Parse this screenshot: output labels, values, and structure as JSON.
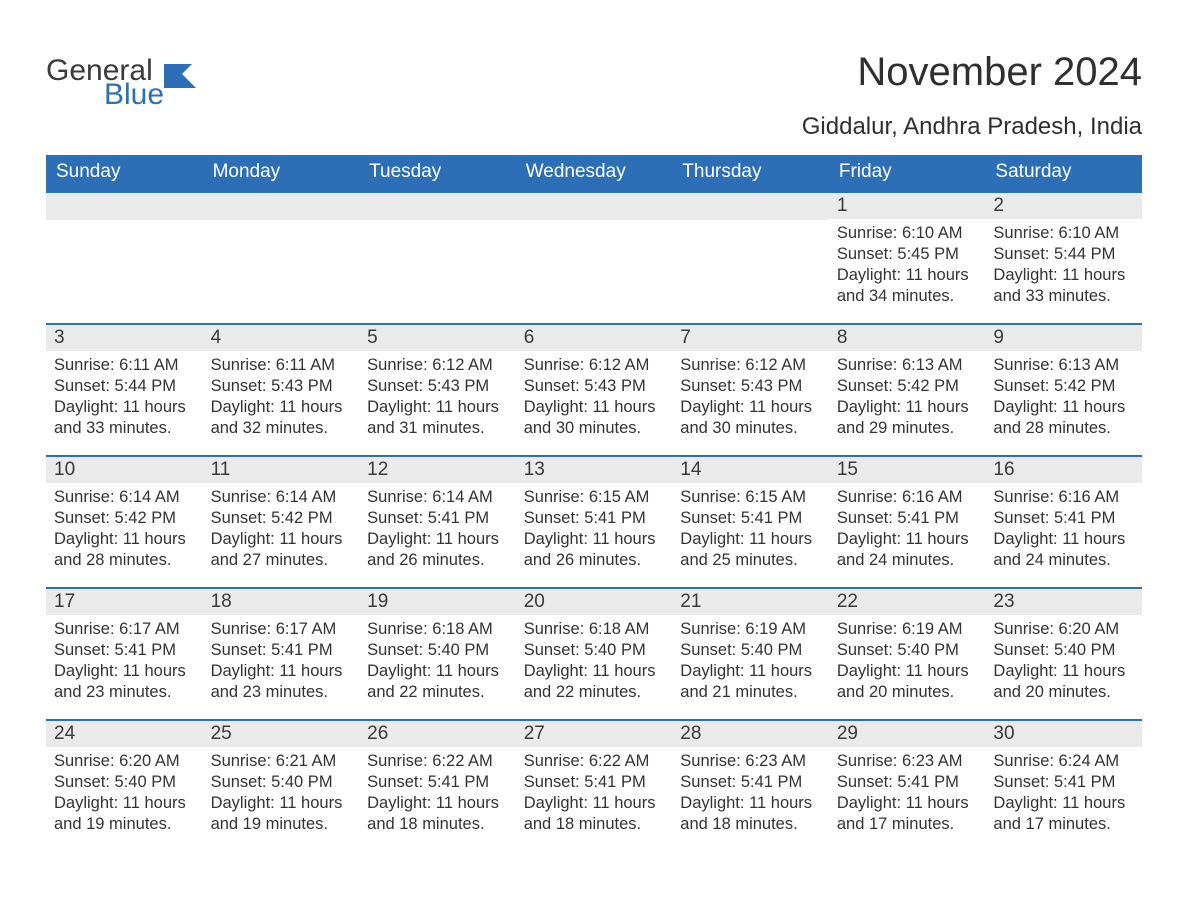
{
  "logo": {
    "text_general": "General",
    "text_blue": "Blue",
    "icon_color": "#2d6fb7"
  },
  "title": "November 2024",
  "location": "Giddalur, Andhra Pradesh, India",
  "colors": {
    "header_bg": "#2d6fb7",
    "header_text": "#ffffff",
    "daybar_bg": "#eaeaea",
    "rule": "#2d6fb7",
    "text": "#333333",
    "page_bg": "#ffffff"
  },
  "weekdays": [
    "Sunday",
    "Monday",
    "Tuesday",
    "Wednesday",
    "Thursday",
    "Friday",
    "Saturday"
  ],
  "startOffset": 5,
  "days": [
    {
      "n": 1,
      "sunrise": "6:10 AM",
      "sunset": "5:45 PM",
      "daylight": "11 hours and 34 minutes."
    },
    {
      "n": 2,
      "sunrise": "6:10 AM",
      "sunset": "5:44 PM",
      "daylight": "11 hours and 33 minutes."
    },
    {
      "n": 3,
      "sunrise": "6:11 AM",
      "sunset": "5:44 PM",
      "daylight": "11 hours and 33 minutes."
    },
    {
      "n": 4,
      "sunrise": "6:11 AM",
      "sunset": "5:43 PM",
      "daylight": "11 hours and 32 minutes."
    },
    {
      "n": 5,
      "sunrise": "6:12 AM",
      "sunset": "5:43 PM",
      "daylight": "11 hours and 31 minutes."
    },
    {
      "n": 6,
      "sunrise": "6:12 AM",
      "sunset": "5:43 PM",
      "daylight": "11 hours and 30 minutes."
    },
    {
      "n": 7,
      "sunrise": "6:12 AM",
      "sunset": "5:43 PM",
      "daylight": "11 hours and 30 minutes."
    },
    {
      "n": 8,
      "sunrise": "6:13 AM",
      "sunset": "5:42 PM",
      "daylight": "11 hours and 29 minutes."
    },
    {
      "n": 9,
      "sunrise": "6:13 AM",
      "sunset": "5:42 PM",
      "daylight": "11 hours and 28 minutes."
    },
    {
      "n": 10,
      "sunrise": "6:14 AM",
      "sunset": "5:42 PM",
      "daylight": "11 hours and 28 minutes."
    },
    {
      "n": 11,
      "sunrise": "6:14 AM",
      "sunset": "5:42 PM",
      "daylight": "11 hours and 27 minutes."
    },
    {
      "n": 12,
      "sunrise": "6:14 AM",
      "sunset": "5:41 PM",
      "daylight": "11 hours and 26 minutes."
    },
    {
      "n": 13,
      "sunrise": "6:15 AM",
      "sunset": "5:41 PM",
      "daylight": "11 hours and 26 minutes."
    },
    {
      "n": 14,
      "sunrise": "6:15 AM",
      "sunset": "5:41 PM",
      "daylight": "11 hours and 25 minutes."
    },
    {
      "n": 15,
      "sunrise": "6:16 AM",
      "sunset": "5:41 PM",
      "daylight": "11 hours and 24 minutes."
    },
    {
      "n": 16,
      "sunrise": "6:16 AM",
      "sunset": "5:41 PM",
      "daylight": "11 hours and 24 minutes."
    },
    {
      "n": 17,
      "sunrise": "6:17 AM",
      "sunset": "5:41 PM",
      "daylight": "11 hours and 23 minutes."
    },
    {
      "n": 18,
      "sunrise": "6:17 AM",
      "sunset": "5:41 PM",
      "daylight": "11 hours and 23 minutes."
    },
    {
      "n": 19,
      "sunrise": "6:18 AM",
      "sunset": "5:40 PM",
      "daylight": "11 hours and 22 minutes."
    },
    {
      "n": 20,
      "sunrise": "6:18 AM",
      "sunset": "5:40 PM",
      "daylight": "11 hours and 22 minutes."
    },
    {
      "n": 21,
      "sunrise": "6:19 AM",
      "sunset": "5:40 PM",
      "daylight": "11 hours and 21 minutes."
    },
    {
      "n": 22,
      "sunrise": "6:19 AM",
      "sunset": "5:40 PM",
      "daylight": "11 hours and 20 minutes."
    },
    {
      "n": 23,
      "sunrise": "6:20 AM",
      "sunset": "5:40 PM",
      "daylight": "11 hours and 20 minutes."
    },
    {
      "n": 24,
      "sunrise": "6:20 AM",
      "sunset": "5:40 PM",
      "daylight": "11 hours and 19 minutes."
    },
    {
      "n": 25,
      "sunrise": "6:21 AM",
      "sunset": "5:40 PM",
      "daylight": "11 hours and 19 minutes."
    },
    {
      "n": 26,
      "sunrise": "6:22 AM",
      "sunset": "5:41 PM",
      "daylight": "11 hours and 18 minutes."
    },
    {
      "n": 27,
      "sunrise": "6:22 AM",
      "sunset": "5:41 PM",
      "daylight": "11 hours and 18 minutes."
    },
    {
      "n": 28,
      "sunrise": "6:23 AM",
      "sunset": "5:41 PM",
      "daylight": "11 hours and 18 minutes."
    },
    {
      "n": 29,
      "sunrise": "6:23 AM",
      "sunset": "5:41 PM",
      "daylight": "11 hours and 17 minutes."
    },
    {
      "n": 30,
      "sunrise": "6:24 AM",
      "sunset": "5:41 PM",
      "daylight": "11 hours and 17 minutes."
    }
  ],
  "labels": {
    "sunrise": "Sunrise: ",
    "sunset": "Sunset: ",
    "daylight": "Daylight: "
  }
}
